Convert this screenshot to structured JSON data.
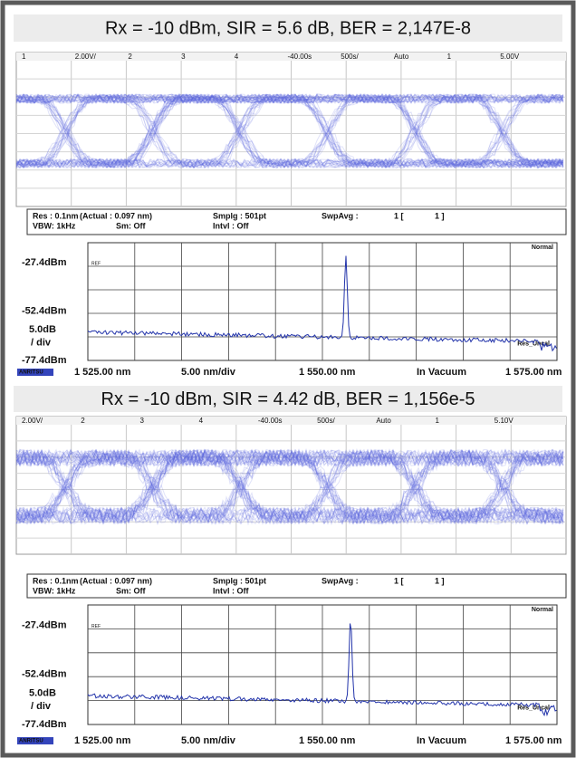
{
  "panels": [
    {
      "title": "Rx = -10 dBm, SIR = 5.6 dB, BER = 2,147E-8",
      "scope_header": [
        "1",
        "2.00V/",
        "2",
        "3",
        "4",
        "-40.00s",
        "500s/",
        "Auto",
        "1",
        "5.00V"
      ],
      "info": {
        "res": "Res : 0.1nm",
        "actual": "(Actual : 0.097 nm)",
        "smplg": "Smplg : 501pt",
        "swpavg": "SwpAvg :",
        "count": "1 [",
        "count_end": "1 ]",
        "vbw": "VBW: 1kHz",
        "sm": "Sm: Off",
        "intvl": "Intvl : Off"
      },
      "spectrum": {
        "ref_level": "-27.4dBm",
        "mid_level": "-52.4dBm",
        "scale": "5.0dB",
        "scale_unit": "/ div",
        "bottom_level": "-77.4dBm",
        "mode": "Normal",
        "ref": "REF",
        "res_uncal": "Res_Uncal",
        "brand": "ANRITSU",
        "x_labels": [
          "1 525.00 nm",
          "5.00 nm/div",
          "1 550.00 nm",
          "In Vacuum",
          "1 575.00 nm"
        ]
      }
    },
    {
      "title": "Rx = -10 dBm, SIR = 4.42 dB, BER = 1,156e-5",
      "scope_header": [
        "2.00V/",
        "2",
        "3",
        "4",
        "-40.00s",
        "500s/",
        "Auto",
        "1",
        "5.10V"
      ],
      "info": {
        "res": "Res : 0.1nm",
        "actual": "(Actual : 0.097 nm)",
        "smplg": "Smplg : 501pt",
        "swpavg": "SwpAvg :",
        "count": "1 [",
        "count_end": "1 ]",
        "vbw": "VBW: 1kHz",
        "sm": "Sm: Off",
        "intvl": "Intvl : Off"
      },
      "spectrum": {
        "ref_level": "-27.4dBm",
        "mid_level": "-52.4dBm",
        "scale": "5.0dB",
        "scale_unit": "/ div",
        "bottom_level": "-77.4dBm",
        "mode": "Normal",
        "ref": "REF",
        "res_uncal": "Res_Uncal",
        "brand": "ANRITSU",
        "x_labels": [
          "1 525.00 nm",
          "5.00 nm/div",
          "1 550.00 nm",
          "In Vacuum",
          "1 575.00 nm"
        ]
      }
    }
  ]
}
